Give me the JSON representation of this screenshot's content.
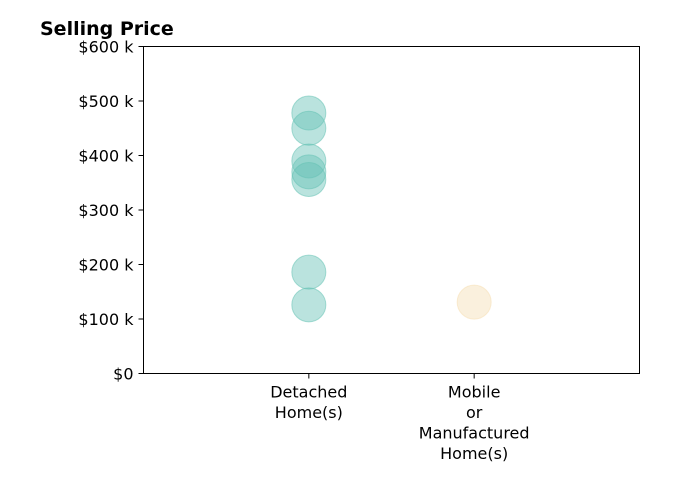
{
  "chart_data": {
    "type": "scatter",
    "title": "Selling Price",
    "xlabel": "",
    "ylabel": "",
    "categories": [
      [
        "Detached",
        "Home(s)"
      ],
      [
        "Mobile",
        "or",
        "Manufactured",
        "Home(s)"
      ]
    ],
    "y_ticks": [
      {
        "value": 0,
        "label": "$0"
      },
      {
        "value": 100000,
        "label": "$100 k"
      },
      {
        "value": 200000,
        "label": "$200 k"
      },
      {
        "value": 300000,
        "label": "$300 k"
      },
      {
        "value": 400000,
        "label": "$400 k"
      },
      {
        "value": 500000,
        "label": "$500 k"
      },
      {
        "value": 600000,
        "label": "$600 k"
      }
    ],
    "ylim": [
      0,
      600000
    ],
    "xlim": [
      -1,
      2
    ],
    "grid": false,
    "legend": "none",
    "series": [
      {
        "category_index": 0,
        "color": "#66c2b5",
        "values": [
          478000,
          450000,
          390000,
          370000,
          356000,
          186000,
          126000
        ]
      },
      {
        "category_index": 1,
        "color": "#f5deb3",
        "values": [
          131000
        ]
      }
    ]
  }
}
